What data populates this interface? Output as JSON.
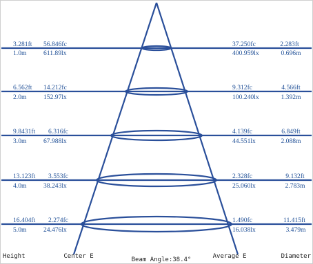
{
  "colors": {
    "line": "#2a4f9a",
    "text": "#1f4f96",
    "footer_text": "#222222",
    "background": "#ffffff"
  },
  "rows": [
    {
      "height_ft": "3.281ft",
      "center_fc": "56.846fc",
      "height_m": "1.0m",
      "center_lx": "611.89lx",
      "avg_fc": "37.250fc",
      "diam_ft": "2.283ft",
      "avg_lx": "400.959lx",
      "diam_m": "0.696m"
    },
    {
      "height_ft": "6.562ft",
      "center_fc": "14.212fc",
      "height_m": "2.0m",
      "center_lx": "152.97lx",
      "avg_fc": "9.312fc",
      "diam_ft": "4.566ft",
      "avg_lx": "100.240lx",
      "diam_m": "1.392m"
    },
    {
      "height_ft": "9.8431ft",
      "center_fc": "6.316fc",
      "height_m": "3.0m",
      "center_lx": "67.988lx",
      "avg_fc": "4.139fc",
      "diam_ft": "6.849ft",
      "avg_lx": "44.551lx",
      "diam_m": "2.088m"
    },
    {
      "height_ft": "13.123ft",
      "center_fc": "3.553fc",
      "height_m": "4.0m",
      "center_lx": "38.243lx",
      "avg_fc": "2.328fc",
      "diam_ft": "9.132ft",
      "avg_lx": "25.060lx",
      "diam_m": "2.783m"
    },
    {
      "height_ft": "16.404ft",
      "center_fc": "2.274fc",
      "height_m": "5.0m",
      "center_lx": "24.476lx",
      "avg_fc": "1.490fc",
      "diam_ft": "11.415ft",
      "avg_lx": "16.038lx",
      "diam_m": "3.479m"
    }
  ],
  "footer": {
    "height_label": "Height",
    "center_label": "Center E",
    "beam_angle_label": "Beam Angle:38.4°",
    "average_label": "Average E",
    "diameter_label": "Diameter"
  }
}
